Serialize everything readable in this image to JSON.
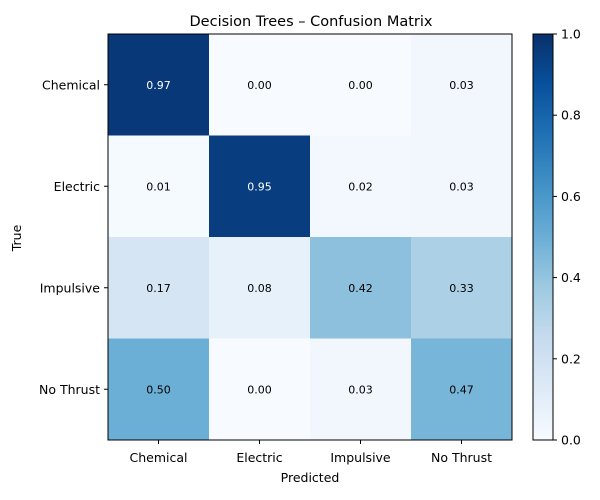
{
  "chart_data": {
    "type": "heatmap",
    "title": "Decision Trees – Confusion Matrix",
    "xlabel": "Predicted",
    "ylabel": "True",
    "x_categories": [
      "Chemical",
      "Electric",
      "Impulsive",
      "No Thrust"
    ],
    "y_categories": [
      "Chemical",
      "Electric",
      "Impulsive",
      "No Thrust"
    ],
    "values": [
      [
        0.97,
        0.0,
        0.0,
        0.03
      ],
      [
        0.01,
        0.95,
        0.02,
        0.03
      ],
      [
        0.17,
        0.08,
        0.42,
        0.33
      ],
      [
        0.5,
        0.0,
        0.03,
        0.47
      ]
    ],
    "value_format": "0.00",
    "colormap": "Blues",
    "vmin": 0.0,
    "vmax": 1.0,
    "colorbar_ticks": [
      "0.0",
      "0.2",
      "0.4",
      "0.6",
      "0.8",
      "1.0"
    ],
    "colorbar_tick_values": [
      0.0,
      0.2,
      0.4,
      0.6,
      0.8,
      1.0
    ],
    "colorbar_placement": "right",
    "grid": false
  }
}
